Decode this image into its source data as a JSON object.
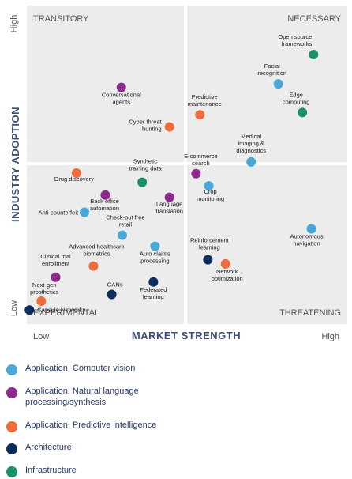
{
  "chart_data": {
    "type": "scatter",
    "xlabel": "MARKET STRENGTH",
    "ylabel": "INDUSTRY ADOPTION",
    "x_tick_labels": {
      "low": "Low",
      "high": "High"
    },
    "y_tick_labels": {
      "low": "Low",
      "high": "High"
    },
    "xlim": [
      0,
      10
    ],
    "ylim": [
      0,
      10
    ],
    "quadrants": {
      "top_left": "TRANSITORY",
      "top_right": "NECESSARY",
      "bottom_left": "EXPERIMENTAL",
      "bottom_right": "THREATENING"
    },
    "legend_position": "bottom",
    "categories": [
      {
        "key": "cv",
        "label": "Application: Computer vision",
        "color": "#4aa8d8"
      },
      {
        "key": "nlp",
        "label": "Application: Natural language processing/synthesis",
        "color": "#8e2a8e"
      },
      {
        "key": "pi",
        "label": "Application: Predictive intelligence",
        "color": "#f26b3a"
      },
      {
        "key": "arch",
        "label": "Architecture",
        "color": "#0f2d5c"
      },
      {
        "key": "infra",
        "label": "Infrastructure",
        "color": "#1a9169"
      }
    ],
    "points": [
      {
        "label": "Open source frameworks",
        "cat": "infra",
        "x": 8.95,
        "y": 8.46
      },
      {
        "label": "Facial recognition",
        "cat": "cv",
        "x": 7.85,
        "y": 7.54
      },
      {
        "label": "Edge computing",
        "cat": "infra",
        "x": 8.6,
        "y": 6.64
      },
      {
        "label": "Conversational agents",
        "cat": "nlp",
        "x": 2.95,
        "y": 7.43
      },
      {
        "label": "Predictive maintenance",
        "cat": "pi",
        "x": 5.4,
        "y": 6.57
      },
      {
        "label": "Cyber threat hunting",
        "cat": "pi",
        "x": 4.45,
        "y": 6.19
      },
      {
        "label": "Medical imaging & diagnostics",
        "cat": "cv",
        "x": 7.0,
        "y": 5.09
      },
      {
        "label": "E-commerce search",
        "cat": "nlp",
        "x": 5.28,
        "y": 4.72
      },
      {
        "label": "Synthetic training data",
        "cat": "infra",
        "x": 3.6,
        "y": 4.45
      },
      {
        "label": "Drug discovery",
        "cat": "pi",
        "x": 1.55,
        "y": 4.74
      },
      {
        "label": "Crop monitoring",
        "cat": "cv",
        "x": 5.68,
        "y": 4.34
      },
      {
        "label": "Back office automation",
        "cat": "nlp",
        "x": 2.45,
        "y": 4.05
      },
      {
        "label": "Language translation",
        "cat": "nlp",
        "x": 4.45,
        "y": 3.98
      },
      {
        "label": "Anti-counterfeit",
        "cat": "cv",
        "x": 1.8,
        "y": 3.51
      },
      {
        "label": "Check-out free retail",
        "cat": "cv",
        "x": 2.98,
        "y": 2.79
      },
      {
        "label": "Autonomous navigation",
        "cat": "cv",
        "x": 8.88,
        "y": 2.99
      },
      {
        "label": "Auto claims processing",
        "cat": "cv",
        "x": 4.0,
        "y": 2.44
      },
      {
        "label": "Advanced healthcare biometrics",
        "cat": "pi",
        "x": 2.08,
        "y": 1.82
      },
      {
        "label": "Reinforcement learning",
        "cat": "arch",
        "x": 5.65,
        "y": 2.02
      },
      {
        "label": "Network optimization",
        "cat": "pi",
        "x": 6.2,
        "y": 1.89
      },
      {
        "label": "Clinical trial enrollment",
        "cat": "nlp",
        "x": 0.9,
        "y": 1.47
      },
      {
        "label": "GANs",
        "cat": "arch",
        "x": 2.65,
        "y": 0.93
      },
      {
        "label": "Federated learning",
        "cat": "arch",
        "x": 3.95,
        "y": 1.32
      },
      {
        "label": "Next-gen prosthetics",
        "cat": "pi",
        "x": 0.45,
        "y": 0.72
      },
      {
        "label": "Capsule Networks",
        "cat": "arch",
        "x": 0.08,
        "y": 0.44
      }
    ]
  }
}
